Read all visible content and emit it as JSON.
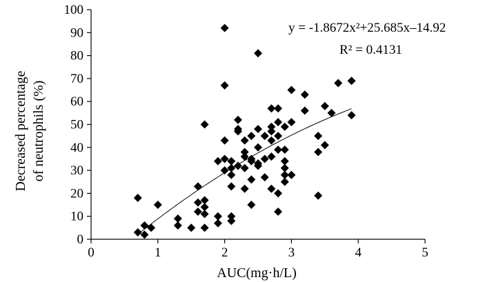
{
  "chart_data": {
    "type": "scatter",
    "xlabel": "AUC(mg·h/L)",
    "ylabel_lines": [
      "Decreased percentage",
      "of neutrophils (%)"
    ],
    "xlim": [
      0,
      5
    ],
    "ylim": [
      0,
      100
    ],
    "xticks": [
      "0",
      "1",
      "2",
      "3",
      "4",
      "5"
    ],
    "yticks": [
      "0",
      "10",
      "20",
      "30",
      "40",
      "50",
      "60",
      "70",
      "80",
      "90",
      "100"
    ],
    "grid": false,
    "equation": "y = -1.8672x²+25.685x–14.92",
    "r_squared": "R² = 0.4131",
    "fit": {
      "a": -1.8672,
      "b": 25.685,
      "c": -14.92,
      "x_range": [
        0.7,
        3.9
      ]
    },
    "points": [
      [
        0.7,
        18
      ],
      [
        0.7,
        3
      ],
      [
        0.8,
        2
      ],
      [
        0.8,
        6
      ],
      [
        0.9,
        5
      ],
      [
        1.0,
        15
      ],
      [
        1.3,
        9
      ],
      [
        1.3,
        6
      ],
      [
        1.5,
        5
      ],
      [
        1.6,
        23
      ],
      [
        1.6,
        16
      ],
      [
        1.6,
        12
      ],
      [
        1.7,
        17
      ],
      [
        1.7,
        14
      ],
      [
        1.7,
        11
      ],
      [
        1.7,
        5
      ],
      [
        1.7,
        50
      ],
      [
        1.9,
        10
      ],
      [
        1.9,
        34
      ],
      [
        1.9,
        7
      ],
      [
        2.0,
        92
      ],
      [
        2.0,
        67
      ],
      [
        2.0,
        43
      ],
      [
        2.0,
        35
      ],
      [
        2.0,
        30
      ],
      [
        2.1,
        34
      ],
      [
        2.1,
        31
      ],
      [
        2.1,
        28
      ],
      [
        2.1,
        23
      ],
      [
        2.1,
        10
      ],
      [
        2.1,
        8
      ],
      [
        2.2,
        52
      ],
      [
        2.2,
        48
      ],
      [
        2.2,
        47
      ],
      [
        2.2,
        32
      ],
      [
        2.3,
        43
      ],
      [
        2.3,
        38
      ],
      [
        2.3,
        36
      ],
      [
        2.3,
        31
      ],
      [
        2.3,
        22
      ],
      [
        2.4,
        45
      ],
      [
        2.4,
        35
      ],
      [
        2.4,
        34
      ],
      [
        2.4,
        26
      ],
      [
        2.4,
        15
      ],
      [
        2.5,
        81
      ],
      [
        2.5,
        48
      ],
      [
        2.5,
        40
      ],
      [
        2.5,
        33
      ],
      [
        2.5,
        32
      ],
      [
        2.6,
        45
      ],
      [
        2.6,
        35
      ],
      [
        2.6,
        27
      ],
      [
        2.7,
        57
      ],
      [
        2.7,
        49
      ],
      [
        2.7,
        47
      ],
      [
        2.7,
        43
      ],
      [
        2.7,
        36
      ],
      [
        2.7,
        22
      ],
      [
        2.8,
        57
      ],
      [
        2.8,
        51
      ],
      [
        2.8,
        45
      ],
      [
        2.8,
        39
      ],
      [
        2.8,
        20
      ],
      [
        2.8,
        12
      ],
      [
        2.9,
        49
      ],
      [
        2.9,
        39
      ],
      [
        2.9,
        34
      ],
      [
        2.9,
        31
      ],
      [
        2.9,
        28
      ],
      [
        2.9,
        25
      ],
      [
        3.0,
        65
      ],
      [
        3.0,
        51
      ],
      [
        3.0,
        28
      ],
      [
        3.2,
        63
      ],
      [
        3.2,
        56
      ],
      [
        3.4,
        45
      ],
      [
        3.4,
        38
      ],
      [
        3.4,
        19
      ],
      [
        3.5,
        58
      ],
      [
        3.5,
        41
      ],
      [
        3.6,
        55
      ],
      [
        3.7,
        68
      ],
      [
        3.9,
        69
      ],
      [
        3.9,
        54
      ]
    ]
  }
}
